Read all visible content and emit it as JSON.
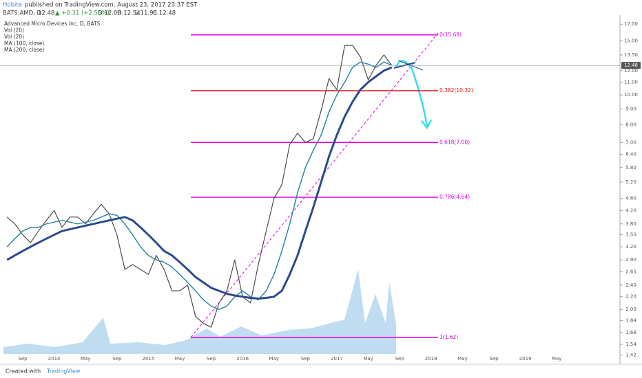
{
  "header": {
    "author": "Hobite",
    "published": "published on TradingView.com, August 23, 2017 23:37 EST",
    "symbol": "BATS:AMD, D",
    "quote": "12.48",
    "change": "▲ +0.31 (+2.55%)",
    "ohlc": [
      "O:12.00",
      "H:12.54",
      "L:11.95",
      "C:12.48"
    ]
  },
  "footer": {
    "created": "Created with",
    "brand": "TradingView"
  },
  "chart_data": {
    "type": "line",
    "log_scale": true,
    "grid": false,
    "categories": [
      null,
      null,
      "Sep",
      null,
      null,
      null,
      "2014",
      null,
      null,
      null,
      "May",
      null,
      null,
      null,
      "Sep",
      null,
      null,
      null,
      "2015",
      null,
      null,
      null,
      "May",
      null,
      null,
      null,
      "Sep",
      null,
      null,
      null,
      "2016",
      null,
      null,
      null,
      "May",
      null,
      null,
      null,
      "Sep",
      null,
      null,
      null,
      "2017",
      null,
      null,
      null,
      "May",
      null,
      null,
      null,
      "Sep",
      null,
      null,
      null,
      "2018",
      null,
      null,
      null,
      "May",
      null,
      null,
      null,
      "Sep",
      null,
      null,
      null,
      "2019",
      null,
      null,
      null,
      "May",
      null,
      null,
      null,
      null,
      null,
      null,
      null,
      null
    ],
    "series": [
      {
        "name": "Advanced Micro Devices Inc, D, BATS",
        "color": "#4a4a4a",
        "width": 1.2,
        "values": [
          4.0,
          3.8,
          3.5,
          3.3,
          3.6,
          3.9,
          4.2,
          3.7,
          4.0,
          4.0,
          3.8,
          4.1,
          4.4,
          4.1,
          3.5,
          2.7,
          2.8,
          2.7,
          2.6,
          3.0,
          2.7,
          2.3,
          2.3,
          2.4,
          1.9,
          1.8,
          1.75,
          2.1,
          2.3,
          2.9,
          2.2,
          2.1,
          2.8,
          3.6,
          4.6,
          5.1,
          6.9,
          7.5,
          7.0,
          7.2,
          8.9,
          11.3,
          10.4,
          14.5,
          14.5,
          13.3,
          11.2,
          12.5,
          13.5,
          12.48,
          null,
          null,
          null,
          null,
          null,
          null,
          null,
          null,
          null,
          null,
          null,
          null,
          null,
          null,
          null,
          null,
          null,
          null,
          null,
          null,
          null,
          null,
          null,
          null,
          null,
          null,
          null,
          null,
          null
        ]
      },
      {
        "name": "MA (100, close)",
        "color": "#2b86a8",
        "width": 1.5,
        "values": [
          3.2,
          3.4,
          3.6,
          3.7,
          3.7,
          3.8,
          3.85,
          3.9,
          3.85,
          3.8,
          3.85,
          3.9,
          4.0,
          4.1,
          4.05,
          3.8,
          3.5,
          3.2,
          3.0,
          2.9,
          2.85,
          2.75,
          2.6,
          2.45,
          2.3,
          2.15,
          2.05,
          2.0,
          2.05,
          2.2,
          2.3,
          2.2,
          2.15,
          2.3,
          2.6,
          3.1,
          3.8,
          4.8,
          5.8,
          6.6,
          7.4,
          8.8,
          10.0,
          11.0,
          12.3,
          12.8,
          12.6,
          12.3,
          12.8,
          12.5,
          null,
          null,
          null,
          null,
          null,
          null,
          null,
          null,
          null,
          null,
          null,
          null,
          null,
          null,
          null,
          null,
          null,
          null,
          null,
          null,
          null,
          null,
          null,
          null,
          null,
          null,
          null,
          null,
          null
        ]
      },
      {
        "name": "MA (200, close)",
        "color": "#2a4a8e",
        "width": 3,
        "values": [
          2.9,
          3.0,
          3.1,
          3.2,
          3.3,
          3.4,
          3.5,
          3.6,
          3.65,
          3.7,
          3.75,
          3.8,
          3.85,
          3.9,
          3.95,
          4.0,
          3.9,
          3.7,
          3.5,
          3.3,
          3.1,
          3.0,
          2.85,
          2.7,
          2.55,
          2.45,
          2.35,
          2.3,
          2.25,
          2.22,
          2.2,
          2.18,
          2.17,
          2.18,
          2.2,
          2.3,
          2.6,
          3.0,
          3.6,
          4.3,
          5.2,
          6.3,
          7.4,
          8.5,
          9.5,
          10.4,
          11.0,
          11.5,
          12.0,
          12.3,
          null,
          null,
          null,
          null,
          null,
          null,
          null,
          null,
          null,
          null,
          null,
          null,
          null,
          null,
          null,
          null,
          null,
          null,
          null,
          null,
          null,
          null,
          null,
          null,
          null,
          null,
          null,
          null,
          null
        ]
      }
    ],
    "volume_studies": [
      "Vol (20)",
      "Vol (20)"
    ],
    "ylim": [
      1.36,
      18.2
    ],
    "yticks": [
      {
        "value": 17,
        "label": "17.00"
      },
      {
        "value": 15,
        "label": "15.00"
      },
      {
        "value": 13.5,
        "label": "13.50"
      },
      {
        "value": 12,
        "label": "12.00"
      },
      {
        "value": 11,
        "label": "11.00"
      },
      {
        "value": 10,
        "label": "10.00"
      },
      {
        "value": 9,
        "label": "9.00"
      },
      {
        "value": 8,
        "label": "8.00"
      },
      {
        "value": 7,
        "label": "7.00"
      },
      {
        "value": 6.4,
        "label": "6.40"
      },
      {
        "value": 5.8,
        "label": "5.80"
      },
      {
        "value": 5.2,
        "label": "5.20"
      },
      {
        "value": 4.6,
        "label": "4.60"
      },
      {
        "value": 4.2,
        "label": "4.20"
      },
      {
        "value": 3.8,
        "label": "3.80"
      },
      {
        "value": 3.5,
        "label": "3.50"
      },
      {
        "value": 3.2,
        "label": "3.20"
      },
      {
        "value": 2.9,
        "label": "2.90"
      },
      {
        "value": 2.65,
        "label": "2.65"
      },
      {
        "value": 2.4,
        "label": "2.40"
      },
      {
        "value": 2.2,
        "label": "2.20"
      },
      {
        "value": 2,
        "label": "2.00"
      },
      {
        "value": 1.84,
        "label": "1.84"
      },
      {
        "value": 1.68,
        "label": "1.68"
      },
      {
        "value": 1.54,
        "label": "1.54"
      },
      {
        "value": 1.42,
        "label": "1.42"
      }
    ],
    "fib_levels": [
      {
        "value": 15.69,
        "label": "0(15.69)"
      },
      {
        "value": 10.32,
        "label": "0.382(10.32)"
      },
      {
        "value": 7.0,
        "label": "0.618(7.00)"
      },
      {
        "value": 4.64,
        "label": "0.786(4.64)"
      },
      {
        "value": 1.62,
        "label": "1(1.62)"
      }
    ],
    "fib_colors": [
      "#e000e0",
      "#e01010",
      "#e000e0",
      "#e000e0",
      "#e000e0"
    ]
  }
}
